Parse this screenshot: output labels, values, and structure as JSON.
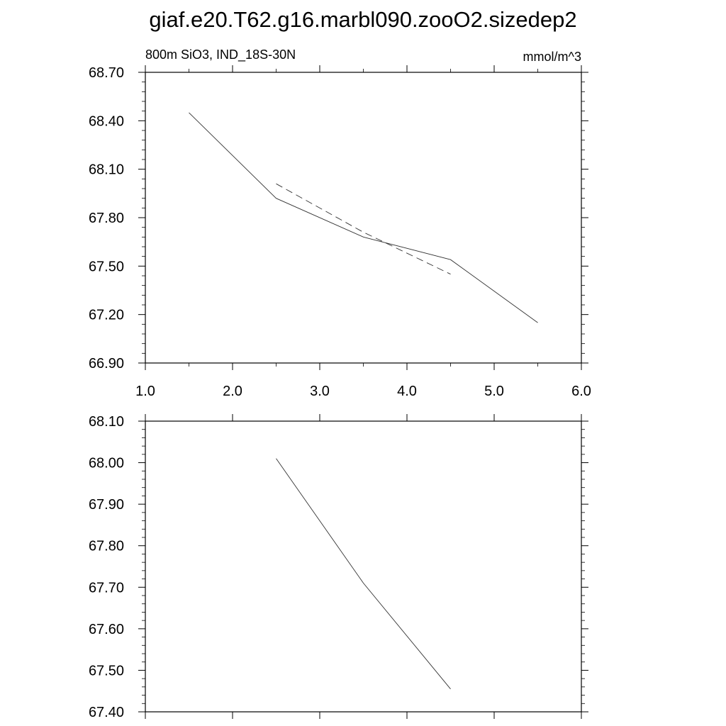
{
  "page_title": "giaf.e20.T62.g16.marbl090.zooO2.sizedep2",
  "chart_data": [
    {
      "type": "line",
      "left_label": "800m SiO3, IND_18S-30N",
      "right_label": "mmol/m^3",
      "xlim": [
        1.0,
        6.0
      ],
      "ylim": [
        66.9,
        68.7
      ],
      "x_ticks": [
        1.0,
        2.0,
        3.0,
        4.0,
        5.0,
        6.0
      ],
      "x_tick_labels": [
        "1.0",
        "2.0",
        "3.0",
        "4.0",
        "5.0",
        "6.0"
      ],
      "y_ticks": [
        66.9,
        67.2,
        67.5,
        67.8,
        68.1,
        68.4,
        68.7
      ],
      "y_tick_labels": [
        "66.90",
        "67.20",
        "67.50",
        "67.80",
        "68.10",
        "68.40",
        "68.70"
      ],
      "series": [
        {
          "style": "solid",
          "x": [
            1.5,
            2.5,
            3.5,
            4.5,
            5.5
          ],
          "y": [
            68.45,
            67.92,
            67.68,
            67.54,
            67.15
          ]
        },
        {
          "style": "dashed",
          "x": [
            2.5,
            3.5,
            4.5
          ],
          "y": [
            68.01,
            67.71,
            67.45
          ]
        }
      ]
    },
    {
      "type": "line",
      "xlim": [
        1.0,
        6.0
      ],
      "ylim": [
        67.4,
        68.1
      ],
      "x_ticks": [
        1.0,
        2.0,
        3.0,
        4.0,
        5.0,
        6.0
      ],
      "y_ticks": [
        67.4,
        67.5,
        67.6,
        67.7,
        67.8,
        67.9,
        68.0,
        68.1
      ],
      "y_tick_labels": [
        "67.40",
        "67.50",
        "67.60",
        "67.70",
        "67.80",
        "67.90",
        "68.00",
        "68.10"
      ],
      "series": [
        {
          "style": "solid",
          "x": [
            2.5,
            3.5,
            4.5
          ],
          "y": [
            68.01,
            67.71,
            67.455
          ]
        }
      ]
    }
  ]
}
